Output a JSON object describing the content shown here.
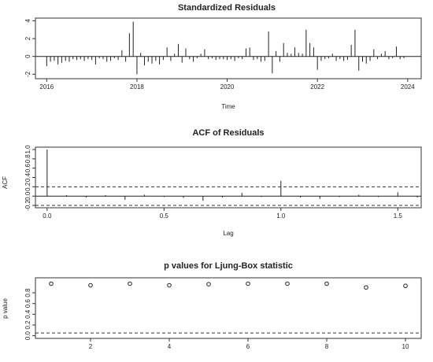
{
  "chart_data": [
    {
      "type": "bar",
      "title": "Standardized Residuals",
      "xlabel": "Time",
      "ylabel": "",
      "xlim": [
        2015.75,
        2024.3
      ],
      "ylim": [
        -2.5,
        4.3
      ],
      "xticks": [
        2016,
        2018,
        2020,
        2022,
        2024
      ],
      "yticks": [
        -2,
        0,
        2,
        4
      ],
      "zero_line": true,
      "x": [
        2016.0,
        2016.083,
        2016.167,
        2016.25,
        2016.333,
        2016.417,
        2016.5,
        2016.583,
        2016.667,
        2016.75,
        2016.833,
        2016.917,
        2017.0,
        2017.083,
        2017.167,
        2017.25,
        2017.333,
        2017.417,
        2017.5,
        2017.583,
        2017.667,
        2017.75,
        2017.833,
        2017.917,
        2018.0,
        2018.083,
        2018.167,
        2018.25,
        2018.333,
        2018.417,
        2018.5,
        2018.583,
        2018.667,
        2018.75,
        2018.833,
        2018.917,
        2019.0,
        2019.083,
        2019.167,
        2019.25,
        2019.333,
        2019.417,
        2019.5,
        2019.583,
        2019.667,
        2019.75,
        2019.833,
        2019.917,
        2020.0,
        2020.083,
        2020.167,
        2020.25,
        2020.333,
        2020.417,
        2020.5,
        2020.583,
        2020.667,
        2020.75,
        2020.833,
        2020.917,
        2021.0,
        2021.083,
        2021.167,
        2021.25,
        2021.333,
        2021.417,
        2021.5,
        2021.583,
        2021.667,
        2021.75,
        2021.833,
        2021.917,
        2022.0,
        2022.083,
        2022.167,
        2022.25,
        2022.333,
        2022.417,
        2022.5,
        2022.583,
        2022.667,
        2022.75,
        2022.833,
        2022.917,
        2023.0,
        2023.083,
        2023.167,
        2023.25,
        2023.333,
        2023.417,
        2023.5,
        2023.583,
        2023.667,
        2023.75,
        2023.833,
        2023.917
      ],
      "values": [
        -1.1,
        -0.6,
        -0.5,
        -0.9,
        -0.7,
        -0.5,
        -0.6,
        -0.3,
        -0.4,
        -0.3,
        -0.5,
        -0.3,
        -0.4,
        -0.9,
        -0.2,
        -0.3,
        -0.6,
        -0.5,
        -0.2,
        -0.4,
        0.7,
        -0.6,
        2.6,
        3.9,
        -2.0,
        0.4,
        -1.0,
        -0.6,
        -0.8,
        -0.5,
        -0.9,
        -0.4,
        1.0,
        -0.5,
        0.3,
        1.4,
        -0.7,
        0.9,
        -0.3,
        -0.6,
        -0.2,
        0.3,
        0.8,
        -0.3,
        -0.2,
        -0.4,
        -0.3,
        -0.3,
        -0.4,
        -0.3,
        -0.5,
        -0.2,
        -0.3,
        0.9,
        1.0,
        -0.4,
        -0.3,
        -0.6,
        -0.5,
        2.8,
        -1.9,
        0.6,
        -0.6,
        1.5,
        0.4,
        0.3,
        1.0,
        0.4,
        0.3,
        3.0,
        1.5,
        1.0,
        -1.5,
        -0.5,
        -0.3,
        -0.2,
        0.3,
        -0.5,
        -0.3,
        -0.5,
        -0.4,
        1.3,
        3.0,
        -1.6,
        -0.6,
        -0.8,
        -0.5,
        0.8,
        -0.3,
        0.3,
        0.6,
        -0.3,
        -0.2,
        1.1,
        -0.3,
        -0.2
      ]
    },
    {
      "type": "bar",
      "title": "ACF of Residuals",
      "xlabel": "Lag",
      "ylabel": "ACF",
      "xlim": [
        -0.05,
        1.6
      ],
      "ylim": [
        -0.25,
        1.05
      ],
      "xticks": [
        0.0,
        0.5,
        1.0,
        1.5
      ],
      "xtick_labels": [
        "0.0",
        "0.5",
        "1.0",
        "1.5"
      ],
      "yticks": [
        -0.2,
        0.0,
        0.2,
        0.4,
        0.6,
        0.8,
        1.0
      ],
      "ytick_labels": [
        "-0.2",
        "0.0",
        "0.2",
        "0.4",
        "0.6",
        "0.8",
        "1.0"
      ],
      "confidence_bounds": [
        0.2,
        -0.2
      ],
      "x": [
        0,
        0.0833,
        0.1667,
        0.25,
        0.3333,
        0.4167,
        0.5,
        0.5833,
        0.6667,
        0.75,
        0.8333,
        0.9167,
        1.0,
        1.0833,
        1.1667,
        1.25,
        1.3333,
        1.4167,
        1.5,
        1.5833
      ],
      "values": [
        1.0,
        0.02,
        -0.03,
        0.02,
        -0.08,
        0.03,
        -0.02,
        -0.04,
        -0.1,
        -0.03,
        0.07,
        -0.02,
        0.33,
        -0.03,
        -0.06,
        -0.02,
        0.03,
        -0.02,
        0.08,
        -0.03
      ]
    },
    {
      "type": "scatter",
      "title": "p values for Ljung-Box statistic",
      "xlabel": "",
      "ylabel": "p value",
      "xlim": [
        0.6,
        10.4
      ],
      "ylim": [
        -0.05,
        1.08
      ],
      "xticks": [
        2,
        4,
        6,
        8,
        10
      ],
      "yticks": [
        0.0,
        0.2,
        0.4,
        0.6,
        0.8
      ],
      "ytick_labels": [
        "0.0",
        "0.2",
        "0.4",
        "0.6",
        "0.8"
      ],
      "reference_line": 0.05,
      "x": [
        1,
        2,
        3,
        4,
        5,
        6,
        7,
        8,
        9,
        10
      ],
      "values": [
        0.97,
        0.94,
        0.97,
        0.94,
        0.96,
        0.97,
        0.97,
        0.97,
        0.9,
        0.93
      ]
    }
  ]
}
